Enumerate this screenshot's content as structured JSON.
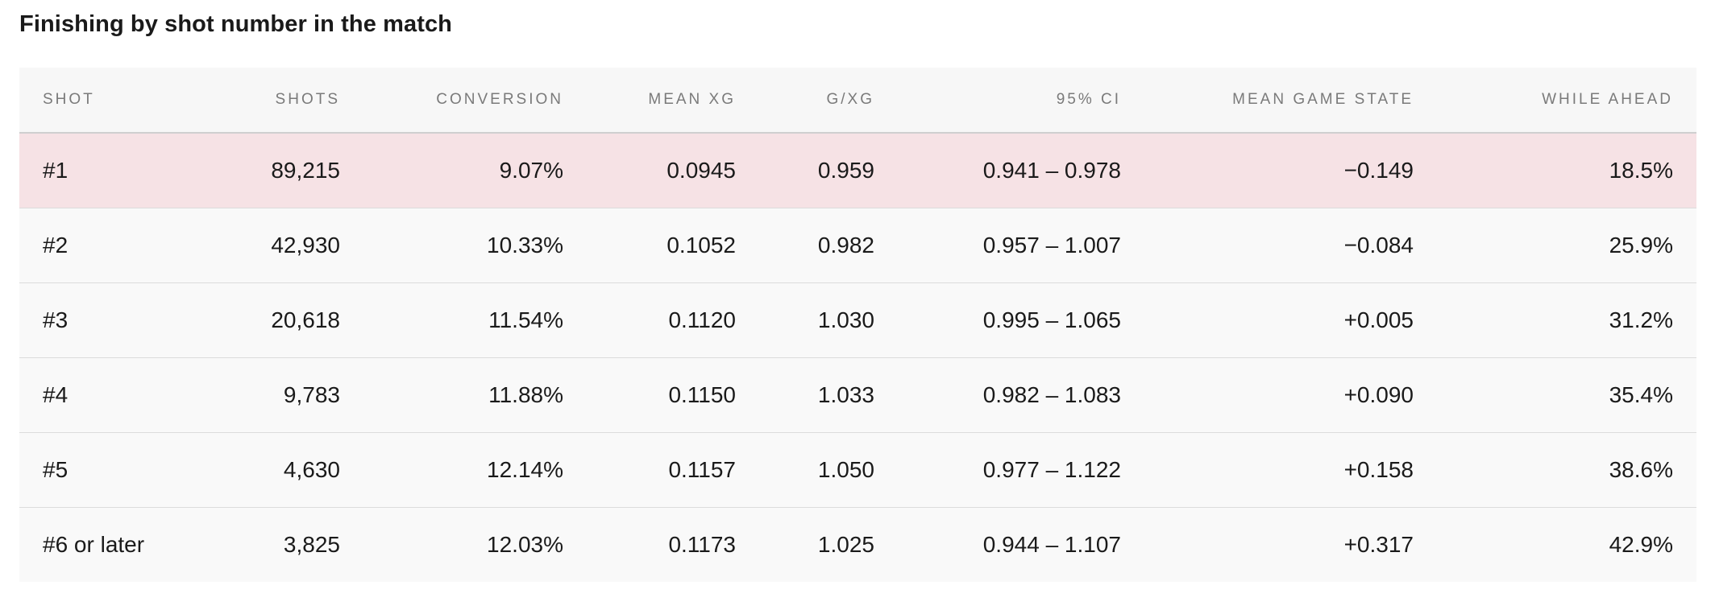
{
  "title": "Finishing by shot number in the match",
  "highlight_color": "#f6e2e5",
  "columns": [
    "SHOT",
    "SHOTS",
    "CONVERSION",
    "MEAN XG",
    "G/XG",
    "95% CI",
    "MEAN GAME STATE",
    "WHILE AHEAD"
  ],
  "rows": [
    {
      "shot": "#1",
      "shots": "89,215",
      "conversion": "9.07%",
      "mean_xg": "0.0945",
      "g_xg": "0.959",
      "ci": "0.941 – 0.978",
      "mean_game_state": "−0.149",
      "while_ahead": "18.5%",
      "highlighted": true
    },
    {
      "shot": "#2",
      "shots": "42,930",
      "conversion": "10.33%",
      "mean_xg": "0.1052",
      "g_xg": "0.982",
      "ci": "0.957 – 1.007",
      "mean_game_state": "−0.084",
      "while_ahead": "25.9%",
      "highlighted": false
    },
    {
      "shot": "#3",
      "shots": "20,618",
      "conversion": "11.54%",
      "mean_xg": "0.1120",
      "g_xg": "1.030",
      "ci": "0.995 – 1.065",
      "mean_game_state": "+0.005",
      "while_ahead": "31.2%",
      "highlighted": false
    },
    {
      "shot": "#4",
      "shots": "9,783",
      "conversion": "11.88%",
      "mean_xg": "0.1150",
      "g_xg": "1.033",
      "ci": "0.982 – 1.083",
      "mean_game_state": "+0.090",
      "while_ahead": "35.4%",
      "highlighted": false
    },
    {
      "shot": "#5",
      "shots": "4,630",
      "conversion": "12.14%",
      "mean_xg": "0.1157",
      "g_xg": "1.050",
      "ci": "0.977 – 1.122",
      "mean_game_state": "+0.158",
      "while_ahead": "38.6%",
      "highlighted": false
    },
    {
      "shot": "#6 or later",
      "shots": "3,825",
      "conversion": "12.03%",
      "mean_xg": "0.1173",
      "g_xg": "1.025",
      "ci": "0.944 – 1.107",
      "mean_game_state": "+0.317",
      "while_ahead": "42.9%",
      "highlighted": false
    }
  ]
}
